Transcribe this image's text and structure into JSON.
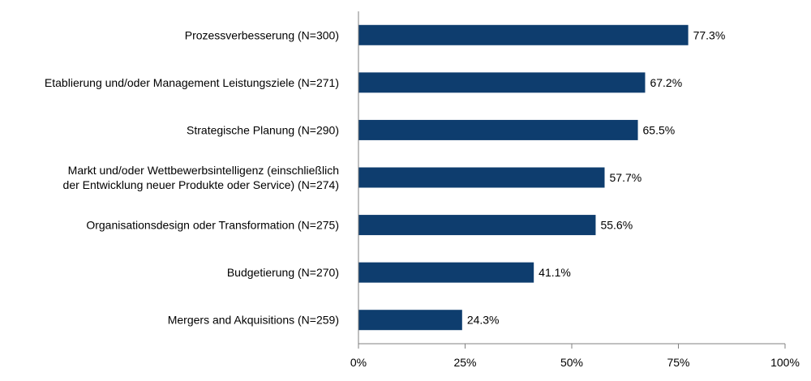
{
  "chart_data": {
    "type": "bar",
    "orientation": "horizontal",
    "categories": [
      "Prozessverbesserung (N=300)",
      "Etablierung und/oder Management Leistungsziele (N=271)",
      "Strategische Planung (N=290)",
      "Markt und/oder Wettbewerbsintelligenz (einschließlich der Entwicklung neuer Produkte oder Service) (N=274)",
      "Organisationsdesign oder Transformation (N=275)",
      "Budgetierung (N=270)",
      "Mergers and Akquisitions (N=259)"
    ],
    "category_lines": [
      [
        "Prozessverbesserung (N=300)"
      ],
      [
        "Etablierung und/oder Management Leistungsziele (N=271)"
      ],
      [
        "Strategische Planung (N=290)"
      ],
      [
        "Markt und/oder Wettbewerbsintelligenz (einschließlich",
        "der Entwicklung neuer Produkte oder Service) (N=274)"
      ],
      [
        "Organisationsdesign oder Transformation (N=275)"
      ],
      [
        "Budgetierung (N=270)"
      ],
      [
        "Mergers and Akquisitions (N=259)"
      ]
    ],
    "values": [
      77.3,
      67.2,
      65.5,
      57.7,
      55.6,
      41.1,
      24.3
    ],
    "value_labels": [
      "77.3%",
      "67.2%",
      "65.5%",
      "57.7%",
      "55.6%",
      "41.1%",
      "24.3%"
    ],
    "xlim": [
      0,
      100
    ],
    "x_ticks": [
      0,
      25,
      50,
      75,
      100
    ],
    "x_tick_labels": [
      "0%",
      "25%",
      "50%",
      "75%",
      "100%"
    ],
    "bar_color": "#0e3d6e",
    "grid": false,
    "legend": "none",
    "title": "",
    "xlabel": "",
    "ylabel": ""
  }
}
